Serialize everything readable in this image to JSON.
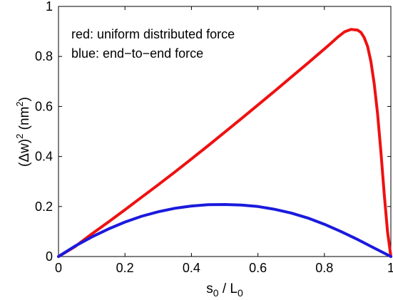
{
  "chart_data": {
    "type": "line",
    "xlabel": {
      "base": "s",
      "sub1": "0",
      "mid": " / L",
      "sub2": "0"
    },
    "ylabel": {
      "pre": "(",
      "delta": "Δ",
      "var": "w)",
      "sup": "2",
      "unit_pre": " (nm",
      "unit_sup": "2",
      "unit_post": ")"
    },
    "xlim": [
      0,
      1
    ],
    "ylim": [
      0,
      1
    ],
    "xticks": [
      0,
      0.2,
      0.4,
      0.6,
      0.8,
      1
    ],
    "xtick_labels": [
      "0",
      "0.2",
      "0.4",
      "0.6",
      "0.8",
      "1"
    ],
    "yticks": [
      0,
      0.2,
      0.4,
      0.6,
      0.8,
      1
    ],
    "ytick_labels": [
      "0",
      "0.2",
      "0.4",
      "0.6",
      "0.8",
      "1"
    ],
    "grid": false,
    "annotations": [
      "red: uniform distributed force",
      "blue: end−to−end force"
    ],
    "series": [
      {
        "color": "#ee1111",
        "x": [
          0,
          0.05,
          0.1,
          0.15,
          0.2,
          0.25,
          0.3,
          0.35,
          0.4,
          0.45,
          0.5,
          0.55,
          0.6,
          0.65,
          0.7,
          0.75,
          0.8,
          0.82,
          0.84,
          0.86,
          0.88,
          0.9,
          0.91,
          0.92,
          0.93,
          0.94,
          0.95,
          0.96,
          0.97,
          0.98,
          0.99,
          1.0
        ],
        "y": [
          0,
          0.04,
          0.09,
          0.138,
          0.187,
          0.237,
          0.287,
          0.338,
          0.39,
          0.443,
          0.497,
          0.551,
          0.606,
          0.661,
          0.717,
          0.773,
          0.83,
          0.853,
          0.877,
          0.898,
          0.908,
          0.905,
          0.896,
          0.875,
          0.84,
          0.78,
          0.69,
          0.57,
          0.42,
          0.25,
          0.1,
          0
        ]
      },
      {
        "color": "#1a1add",
        "x": [
          0,
          0.025,
          0.05,
          0.1,
          0.15,
          0.2,
          0.25,
          0.3,
          0.35,
          0.4,
          0.45,
          0.5,
          0.55,
          0.6,
          0.65,
          0.7,
          0.75,
          0.8,
          0.85,
          0.9,
          0.95,
          0.975,
          1.0
        ],
        "y": [
          0,
          0.021,
          0.042,
          0.078,
          0.11,
          0.138,
          0.161,
          0.179,
          0.193,
          0.202,
          0.207,
          0.208,
          0.206,
          0.2,
          0.189,
          0.174,
          0.154,
          0.129,
          0.1,
          0.068,
          0.034,
          0.017,
          0
        ]
      }
    ]
  }
}
